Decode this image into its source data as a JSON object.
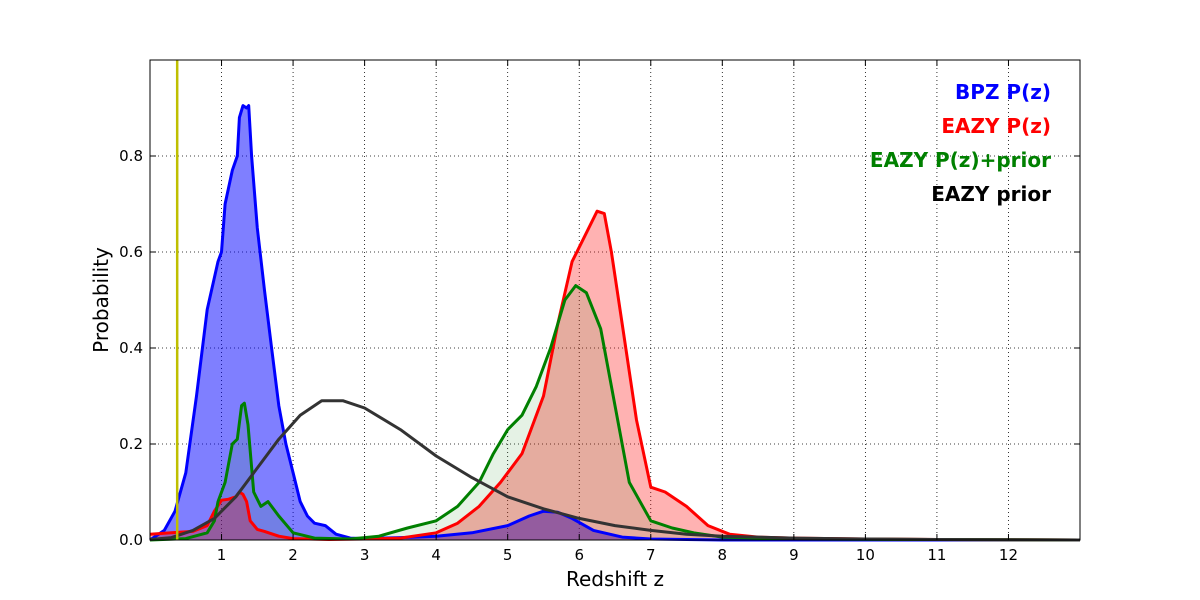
{
  "chart_data": {
    "type": "area",
    "title": "",
    "xlabel": "Redshift z",
    "ylabel": "Probability",
    "xlim": [
      0,
      13
    ],
    "ylim": [
      0,
      1.0
    ],
    "x_ticks": [
      1,
      2,
      3,
      4,
      5,
      6,
      7,
      8,
      9,
      10,
      11,
      12
    ],
    "y_ticks": [
      0.0,
      0.2,
      0.4,
      0.6,
      0.8
    ],
    "y_tick_labels": [
      "0.0",
      "0.2",
      "0.4",
      "0.6",
      "0.8"
    ],
    "grid": true,
    "legend_position": "top-right",
    "marker_line": {
      "x": 0.38,
      "color": "#bfbf00"
    },
    "series": [
      {
        "name": "BPZ P(z)",
        "color": "#0000ff",
        "fill": "rgba(0,0,255,0.5)",
        "points": [
          [
            0,
            0
          ],
          [
            0.2,
            0.02
          ],
          [
            0.35,
            0.06
          ],
          [
            0.5,
            0.14
          ],
          [
            0.65,
            0.3
          ],
          [
            0.8,
            0.48
          ],
          [
            0.95,
            0.58
          ],
          [
            1.0,
            0.6
          ],
          [
            1.05,
            0.7
          ],
          [
            1.15,
            0.77
          ],
          [
            1.22,
            0.8
          ],
          [
            1.25,
            0.88
          ],
          [
            1.3,
            0.905
          ],
          [
            1.35,
            0.9
          ],
          [
            1.38,
            0.905
          ],
          [
            1.42,
            0.8
          ],
          [
            1.5,
            0.65
          ],
          [
            1.6,
            0.52
          ],
          [
            1.7,
            0.4
          ],
          [
            1.8,
            0.28
          ],
          [
            1.9,
            0.2
          ],
          [
            2.0,
            0.14
          ],
          [
            2.1,
            0.08
          ],
          [
            2.2,
            0.05
          ],
          [
            2.3,
            0.035
          ],
          [
            2.45,
            0.03
          ],
          [
            2.6,
            0.012
          ],
          [
            2.8,
            0.004
          ],
          [
            3.0,
            0.003
          ],
          [
            3.5,
            0.005
          ],
          [
            4.0,
            0.008
          ],
          [
            4.5,
            0.015
          ],
          [
            5.0,
            0.03
          ],
          [
            5.3,
            0.05
          ],
          [
            5.5,
            0.06
          ],
          [
            5.7,
            0.058
          ],
          [
            5.9,
            0.045
          ],
          [
            6.2,
            0.02
          ],
          [
            6.6,
            0.006
          ],
          [
            7.0,
            0.002
          ],
          [
            8,
            0
          ],
          [
            13,
            0
          ]
        ]
      },
      {
        "name": "EAZY P(z)",
        "color": "#ff0000",
        "fill": "rgba(255,0,0,0.3)",
        "points": [
          [
            0,
            0.012
          ],
          [
            0.3,
            0.015
          ],
          [
            0.6,
            0.018
          ],
          [
            0.8,
            0.03
          ],
          [
            0.9,
            0.06
          ],
          [
            1.0,
            0.083
          ],
          [
            1.1,
            0.085
          ],
          [
            1.2,
            0.09
          ],
          [
            1.25,
            0.1
          ],
          [
            1.3,
            0.095
          ],
          [
            1.35,
            0.08
          ],
          [
            1.4,
            0.04
          ],
          [
            1.5,
            0.022
          ],
          [
            1.6,
            0.018
          ],
          [
            1.8,
            0.008
          ],
          [
            2.0,
            0.003
          ],
          [
            2.5,
            0.001
          ],
          [
            3.0,
            0.002
          ],
          [
            3.5,
            0.004
          ],
          [
            4.0,
            0.015
          ],
          [
            4.3,
            0.035
          ],
          [
            4.6,
            0.07
          ],
          [
            4.9,
            0.12
          ],
          [
            5.2,
            0.18
          ],
          [
            5.5,
            0.3
          ],
          [
            5.7,
            0.45
          ],
          [
            5.9,
            0.58
          ],
          [
            6.1,
            0.64
          ],
          [
            6.25,
            0.685
          ],
          [
            6.35,
            0.68
          ],
          [
            6.45,
            0.6
          ],
          [
            6.6,
            0.45
          ],
          [
            6.8,
            0.25
          ],
          [
            7.0,
            0.11
          ],
          [
            7.2,
            0.1
          ],
          [
            7.5,
            0.07
          ],
          [
            7.8,
            0.03
          ],
          [
            8.1,
            0.012
          ],
          [
            8.5,
            0.006
          ],
          [
            9.0,
            0.004
          ],
          [
            10,
            0.002
          ],
          [
            11,
            0.001
          ],
          [
            13,
            0
          ]
        ]
      },
      {
        "name": "EAZY P(z)+prior",
        "color": "#008000",
        "fill": "rgba(0,128,0,0.1)",
        "points": [
          [
            0,
            0
          ],
          [
            0.5,
            0.003
          ],
          [
            0.8,
            0.015
          ],
          [
            0.9,
            0.04
          ],
          [
            0.95,
            0.08
          ],
          [
            1.05,
            0.12
          ],
          [
            1.15,
            0.2
          ],
          [
            1.22,
            0.21
          ],
          [
            1.28,
            0.28
          ],
          [
            1.32,
            0.285
          ],
          [
            1.37,
            0.24
          ],
          [
            1.45,
            0.1
          ],
          [
            1.55,
            0.07
          ],
          [
            1.65,
            0.08
          ],
          [
            1.8,
            0.05
          ],
          [
            2.0,
            0.015
          ],
          [
            2.3,
            0.004
          ],
          [
            2.8,
            0.002
          ],
          [
            3.2,
            0.008
          ],
          [
            3.6,
            0.025
          ],
          [
            4.0,
            0.04
          ],
          [
            4.3,
            0.07
          ],
          [
            4.6,
            0.12
          ],
          [
            4.8,
            0.18
          ],
          [
            5.0,
            0.23
          ],
          [
            5.2,
            0.26
          ],
          [
            5.4,
            0.32
          ],
          [
            5.6,
            0.4
          ],
          [
            5.8,
            0.5
          ],
          [
            5.95,
            0.53
          ],
          [
            6.1,
            0.515
          ],
          [
            6.3,
            0.44
          ],
          [
            6.5,
            0.28
          ],
          [
            6.7,
            0.12
          ],
          [
            7.0,
            0.04
          ],
          [
            7.3,
            0.025
          ],
          [
            7.6,
            0.015
          ],
          [
            8,
            0.006
          ],
          [
            9,
            0.002
          ],
          [
            13,
            0
          ]
        ]
      },
      {
        "name": "EAZY prior",
        "color": "#333333",
        "fill": "none",
        "points": [
          [
            0,
            0.001
          ],
          [
            0.3,
            0.005
          ],
          [
            0.6,
            0.02
          ],
          [
            0.9,
            0.045
          ],
          [
            1.2,
            0.09
          ],
          [
            1.5,
            0.15
          ],
          [
            1.8,
            0.21
          ],
          [
            2.1,
            0.26
          ],
          [
            2.4,
            0.29
          ],
          [
            2.7,
            0.29
          ],
          [
            3.0,
            0.275
          ],
          [
            3.5,
            0.23
          ],
          [
            4.0,
            0.175
          ],
          [
            4.5,
            0.13
          ],
          [
            5.0,
            0.09
          ],
          [
            5.5,
            0.065
          ],
          [
            6.0,
            0.045
          ],
          [
            6.5,
            0.03
          ],
          [
            7.0,
            0.02
          ],
          [
            7.5,
            0.012
          ],
          [
            8.0,
            0.008
          ],
          [
            9.0,
            0.004
          ],
          [
            10,
            0.002
          ],
          [
            11,
            0.001
          ],
          [
            13,
            0
          ]
        ]
      }
    ]
  }
}
